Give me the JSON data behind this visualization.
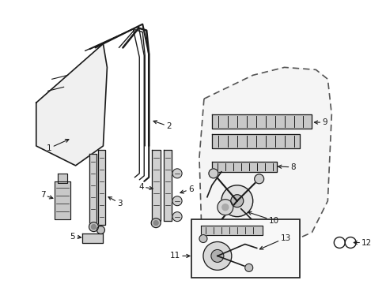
{
  "background_color": "#ffffff",
  "line_color": "#1a1a1a",
  "figsize": [
    4.89,
    3.6
  ],
  "dpi": 100,
  "parts": {
    "glass_outline": {
      "x": [
        0.07,
        0.18,
        0.2,
        0.2,
        0.13,
        0.07
      ],
      "y": [
        0.72,
        0.88,
        0.88,
        0.6,
        0.55,
        0.62
      ]
    },
    "frame_outer": {
      "x": [
        0.17,
        0.26,
        0.28,
        0.28,
        0.23,
        0.17
      ],
      "y": [
        0.92,
        0.92,
        0.86,
        0.52,
        0.46,
        0.46
      ]
    }
  }
}
